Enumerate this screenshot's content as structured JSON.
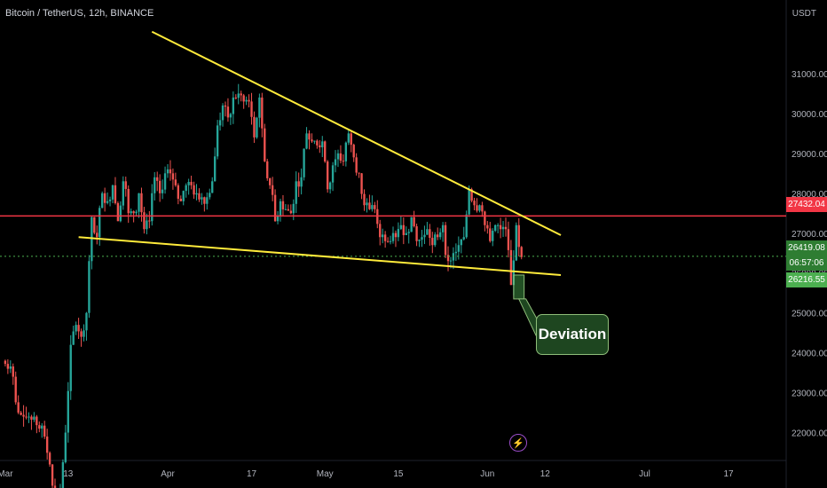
{
  "header": {
    "title": "Bitcoin / TetherUS, 12h, BINANCE",
    "currency": "USDT"
  },
  "chart_data": {
    "type": "candlestick",
    "symbol": "Bitcoin / TetherUS",
    "interval": "12h",
    "exchange": "BINANCE",
    "y_ticks": [
      22000,
      23000,
      24000,
      25000,
      26000,
      27000,
      28000,
      29000,
      30000,
      31000
    ],
    "y_tick_labels": [
      "22000.00",
      "23000.00",
      "24000.00",
      "25000.00",
      "26000.00",
      "27000.00",
      "28000.00",
      "29000.00",
      "30000.00",
      "31000.00"
    ],
    "ylim": [
      21300,
      32400
    ],
    "x_tick_labels": [
      "Mar",
      "13",
      "Apr",
      "17",
      "May",
      "15",
      "Jun",
      "12",
      "Jul",
      "17"
    ],
    "x_ticks": [
      "2023-03-01",
      "2023-03-13",
      "2023-04-01",
      "2023-04-17",
      "2023-05-01",
      "2023-05-15",
      "2023-06-01",
      "2023-06-12",
      "2023-07-01",
      "2023-07-17"
    ],
    "xlim": [
      "2023-02-28",
      "2023-07-28"
    ],
    "candles_approx_close": [
      [
        "2023-03-01",
        23600
      ],
      [
        "2023-03-02",
        23400
      ],
      [
        "2023-03-03",
        22500
      ],
      [
        "2023-03-04",
        22400
      ],
      [
        "2023-03-05",
        22400
      ],
      [
        "2023-03-06",
        22400
      ],
      [
        "2023-03-07",
        22100
      ],
      [
        "2023-03-08",
        21900
      ],
      [
        "2023-03-09",
        21200
      ],
      [
        "2023-03-10",
        20400
      ],
      [
        "2023-03-11",
        20600
      ],
      [
        "2023-03-12",
        22000
      ],
      [
        "2023-03-13",
        24200
      ],
      [
        "2023-03-14",
        24700
      ],
      [
        "2023-03-15",
        24400
      ],
      [
        "2023-03-16",
        25000
      ],
      [
        "2023-03-17",
        27400
      ],
      [
        "2023-03-18",
        26900
      ],
      [
        "2023-03-19",
        28000
      ],
      [
        "2023-03-20",
        27800
      ],
      [
        "2023-03-21",
        28200
      ],
      [
        "2023-03-22",
        27300
      ],
      [
        "2023-03-23",
        28300
      ],
      [
        "2023-03-24",
        27500
      ],
      [
        "2023-03-25",
        27500
      ],
      [
        "2023-03-26",
        28000
      ],
      [
        "2023-03-27",
        27100
      ],
      [
        "2023-03-28",
        27300
      ],
      [
        "2023-03-29",
        28400
      ],
      [
        "2023-03-30",
        28000
      ],
      [
        "2023-03-31",
        28500
      ],
      [
        "2023-04-01",
        28500
      ],
      [
        "2023-04-02",
        28200
      ],
      [
        "2023-04-03",
        27800
      ],
      [
        "2023-04-04",
        28200
      ],
      [
        "2023-04-05",
        28200
      ],
      [
        "2023-04-06",
        28000
      ],
      [
        "2023-04-07",
        27900
      ],
      [
        "2023-04-08",
        27900
      ],
      [
        "2023-04-09",
        28300
      ],
      [
        "2023-04-10",
        29700
      ],
      [
        "2023-04-11",
        30200
      ],
      [
        "2023-04-12",
        29900
      ],
      [
        "2023-04-13",
        30400
      ],
      [
        "2023-04-14",
        30500
      ],
      [
        "2023-04-15",
        30300
      ],
      [
        "2023-04-16",
        30300
      ],
      [
        "2023-04-17",
        29400
      ],
      [
        "2023-04-18",
        30400
      ],
      [
        "2023-04-19",
        28800
      ],
      [
        "2023-04-20",
        28200
      ],
      [
        "2023-04-21",
        27300
      ],
      [
        "2023-04-22",
        27800
      ],
      [
        "2023-04-23",
        27600
      ],
      [
        "2023-04-24",
        27500
      ],
      [
        "2023-04-25",
        28300
      ],
      [
        "2023-04-26",
        28400
      ],
      [
        "2023-04-27",
        29500
      ],
      [
        "2023-04-28",
        29300
      ],
      [
        "2023-04-29",
        29200
      ],
      [
        "2023-04-30",
        29300
      ],
      [
        "2023-05-01",
        28100
      ],
      [
        "2023-05-02",
        28700
      ],
      [
        "2023-05-03",
        29000
      ],
      [
        "2023-05-04",
        28800
      ],
      [
        "2023-05-05",
        29500
      ],
      [
        "2023-05-06",
        28900
      ],
      [
        "2023-05-07",
        28500
      ],
      [
        "2023-05-08",
        27700
      ],
      [
        "2023-05-09",
        27600
      ],
      [
        "2023-05-10",
        27600
      ],
      [
        "2023-05-11",
        26900
      ],
      [
        "2023-05-12",
        26800
      ],
      [
        "2023-05-13",
        26800
      ],
      [
        "2023-05-14",
        26900
      ],
      [
        "2023-05-15",
        27200
      ],
      [
        "2023-05-16",
        27000
      ],
      [
        "2023-05-17",
        27400
      ],
      [
        "2023-05-18",
        26800
      ],
      [
        "2023-05-19",
        26900
      ],
      [
        "2023-05-20",
        27100
      ],
      [
        "2023-05-21",
        26700
      ],
      [
        "2023-05-22",
        26900
      ],
      [
        "2023-05-23",
        27200
      ],
      [
        "2023-05-24",
        26300
      ],
      [
        "2023-05-25",
        26500
      ],
      [
        "2023-05-26",
        26700
      ],
      [
        "2023-05-27",
        26900
      ],
      [
        "2023-05-28",
        28100
      ],
      [
        "2023-05-29",
        27700
      ],
      [
        "2023-05-30",
        27700
      ],
      [
        "2023-05-31",
        27200
      ],
      [
        "2023-06-01",
        26800
      ],
      [
        "2023-06-02",
        27200
      ],
      [
        "2023-06-03",
        27100
      ],
      [
        "2023-06-04",
        27100
      ],
      [
        "2023-06-05",
        25700
      ],
      [
        "2023-06-06",
        27200
      ],
      [
        "2023-06-07",
        26400
      ]
    ],
    "lines": [
      {
        "name": "descending resistance",
        "color": "#ffeb3b",
        "from": [
          "2023-03-29",
          32050
        ],
        "to": [
          "2023-06-15",
          26950
        ]
      },
      {
        "name": "support",
        "color": "#ffeb3b",
        "from": [
          "2023-03-15",
          26900
        ],
        "to": [
          "2023-06-15",
          25950
        ]
      }
    ],
    "horizontal_level": {
      "value": 27432.04,
      "color": "#f23645"
    },
    "current_price_line": {
      "value": 26419.08,
      "color": "#4caf50"
    },
    "price_tags": [
      {
        "label": "27432.04",
        "color": "#f23645",
        "value": 27432.04
      },
      {
        "label": "26419.08",
        "color": "#2e7d32",
        "value": 26419.08
      },
      {
        "label": "06:57:06",
        "color": "#2e7d32",
        "value": 26130
      },
      {
        "label": "26216.55",
        "color": "#4caf50",
        "value": 25830
      }
    ],
    "highlight_box": {
      "x0": "2023-06-06",
      "x1": "2023-06-08",
      "y0": 25350,
      "y1": 25950,
      "color": "#4caf50"
    },
    "annotation": "Deviation",
    "grid": false
  },
  "colors": {
    "up": "#26a69a",
    "down": "#ef5350",
    "background": "#000000",
    "axis_text": "#b2b5be"
  }
}
